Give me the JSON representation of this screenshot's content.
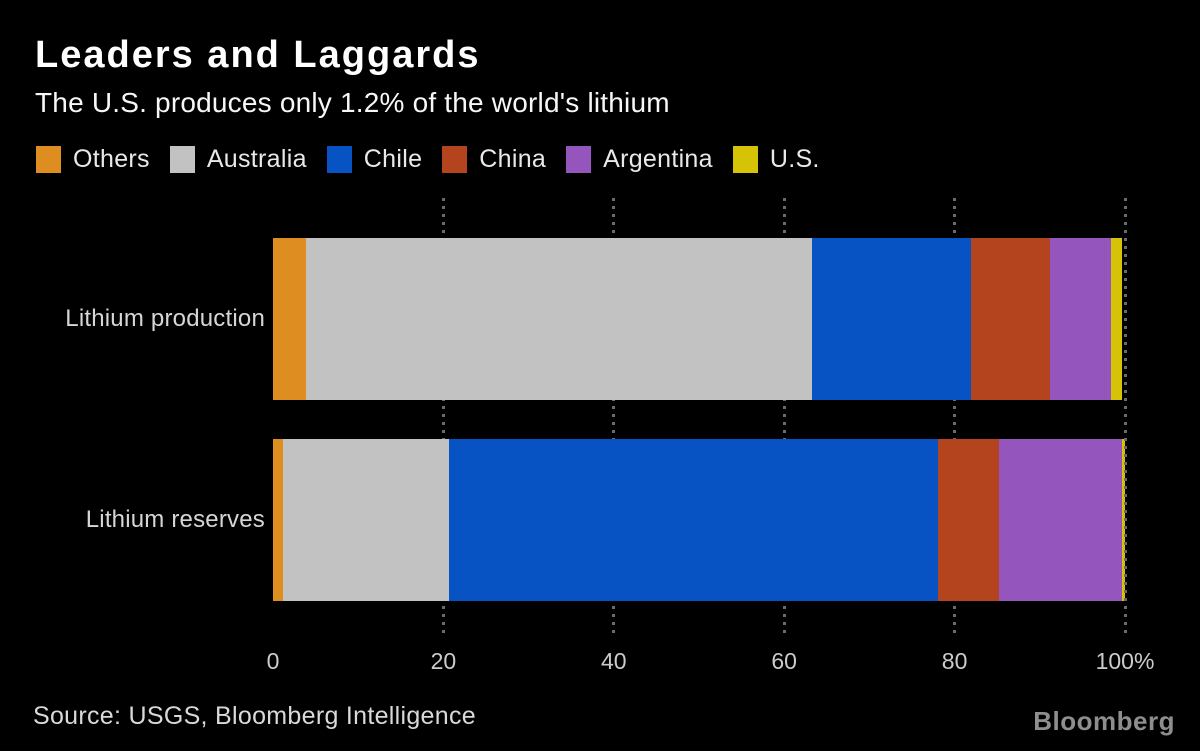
{
  "header": {
    "title": "Leaders and Laggards",
    "subtitle": "The U.S. produces only 1.2% of the world's lithium"
  },
  "chart_data": {
    "type": "bar",
    "orientation": "horizontal",
    "stacked": true,
    "unit": "percent",
    "title": "Leaders and Laggards",
    "subtitle": "The U.S. produces only 1.2% of the world's lithium",
    "categories": [
      "Lithium production",
      "Lithium reserves"
    ],
    "series": [
      {
        "name": "Others",
        "color": "#DE8E20",
        "values": [
          3.9,
          1.2
        ]
      },
      {
        "name": "Australia",
        "color": "#C2C2C2",
        "values": [
          59.4,
          19.4
        ]
      },
      {
        "name": "Chile",
        "color": "#0853C4",
        "values": [
          18.6,
          57.4
        ]
      },
      {
        "name": "China",
        "color": "#B3441E",
        "values": [
          9.3,
          7.2
        ]
      },
      {
        "name": "Argentina",
        "color": "#9456BD",
        "values": [
          7.2,
          14.4
        ]
      },
      {
        "name": "U.S.",
        "color": "#D6C206",
        "values": [
          1.2,
          0.4
        ]
      }
    ],
    "x_axis": {
      "range": [
        0,
        100
      ],
      "ticks": [
        0,
        20,
        40,
        60,
        80,
        100
      ],
      "tick_labels": [
        "0",
        "20",
        "40",
        "60",
        "80",
        "100%"
      ],
      "gridlines_at": [
        20,
        40,
        60,
        80,
        100
      ],
      "grid_style": "dotted"
    },
    "legend_position": "top",
    "legend": [
      "Others",
      "Australia",
      "Chile",
      "China",
      "Argentina",
      "U.S."
    ]
  },
  "footer": {
    "source": "Source: USGS, Bloomberg Intelligence",
    "brand": "Bloomberg"
  },
  "colors": {
    "background": "#000000",
    "title_text": "#FFFFFF",
    "subtitle_text": "#F7F7F7",
    "legend_text": "#E9E9E9",
    "row_label_text": "#D6D6D6",
    "axis_text": "#CCCCCC",
    "gridline": "#6B6B6B",
    "source_text": "#D9D9D9",
    "brand_text": "#8E8E8E"
  }
}
